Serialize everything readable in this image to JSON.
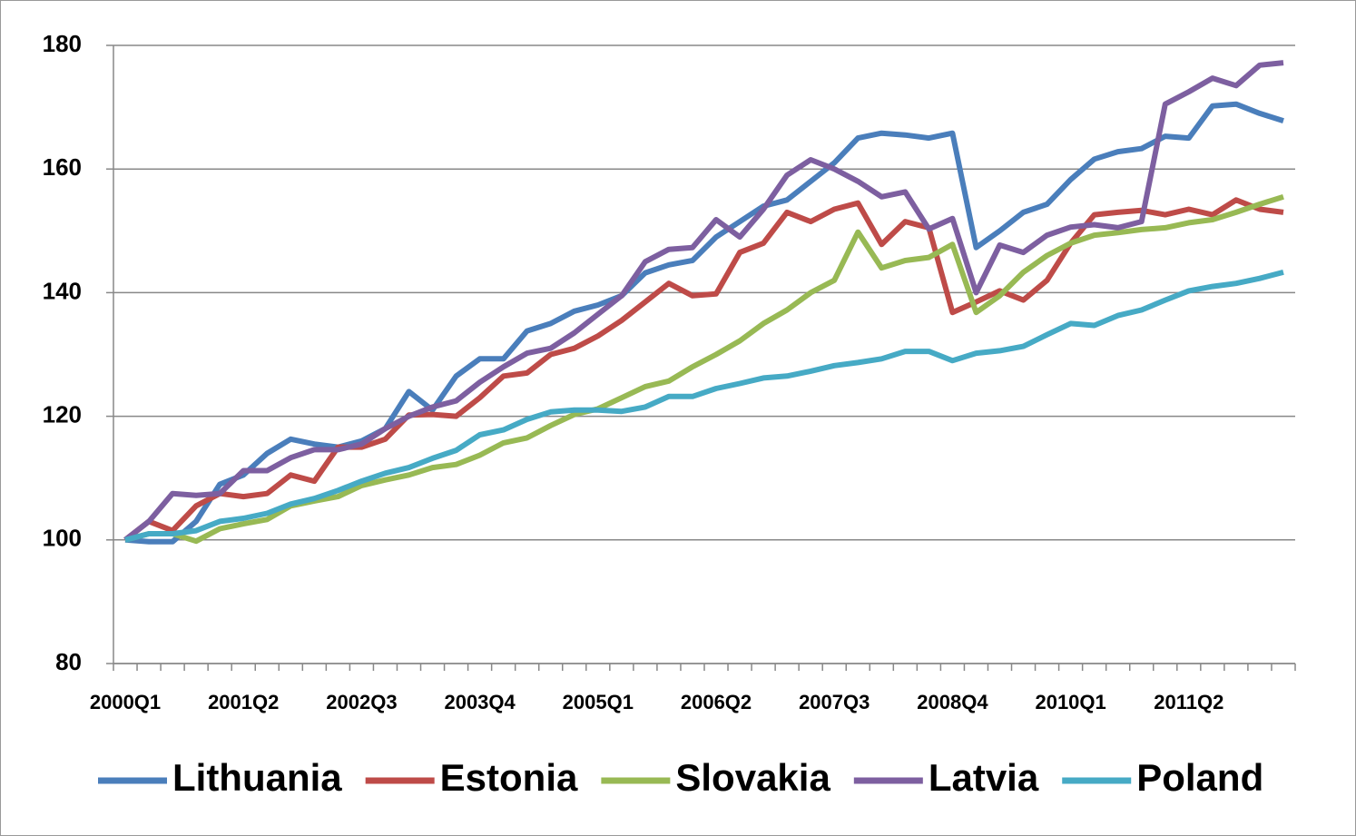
{
  "chart_data": {
    "type": "line",
    "categories": [
      "2000Q1",
      null,
      null,
      null,
      null,
      "2001Q2",
      null,
      null,
      null,
      null,
      "2002Q3",
      null,
      null,
      null,
      null,
      "2003Q4",
      null,
      null,
      null,
      null,
      "2005Q1",
      null,
      null,
      null,
      null,
      "2006Q2",
      null,
      null,
      null,
      null,
      "2007Q3",
      null,
      null,
      null,
      null,
      "2008Q4",
      null,
      null,
      null,
      null,
      "2010Q1",
      null,
      null,
      null,
      null,
      "2011Q2",
      null,
      null,
      null,
      null
    ],
    "series": [
      {
        "name": "Lithuania",
        "color": "#4a7ebb",
        "values": [
          100,
          99.7,
          99.7,
          103,
          109,
          110.5,
          114,
          116.3,
          115.5,
          115,
          116,
          118,
          124,
          121,
          126.5,
          129.3,
          129.3,
          133.8,
          135,
          137,
          138,
          139.5,
          143.2,
          144.5,
          145.2,
          149,
          151.5,
          154,
          155,
          158,
          161,
          165,
          165.8,
          165.5,
          165,
          165.8,
          147.3,
          150,
          153,
          154.3,
          158.3,
          161.6,
          162.8,
          163.3,
          165.3,
          165,
          170.2,
          170.5,
          169,
          167.8
        ]
      },
      {
        "name": "Estonia",
        "color": "#be4b48",
        "values": [
          100,
          103,
          101.5,
          105.5,
          107.5,
          107,
          107.5,
          110.5,
          109.5,
          115,
          115,
          116.3,
          120.2,
          120.3,
          120,
          123,
          126.5,
          127,
          130,
          131,
          133,
          135.5,
          138.5,
          141.5,
          139.5,
          139.8,
          146.5,
          148,
          153,
          151.5,
          153.5,
          154.5,
          147.8,
          151.5,
          150.5,
          136.8,
          138.5,
          140.3,
          138.8,
          142,
          148,
          152.6,
          153,
          153.3,
          152.6,
          153.5,
          152.6,
          155,
          153.5,
          153
        ]
      },
      {
        "name": "Slovakia",
        "color": "#98b954",
        "values": [
          100,
          101,
          101,
          99.8,
          101.8,
          102.6,
          103.3,
          105.5,
          106.3,
          107,
          108.8,
          109.7,
          110.5,
          111.7,
          112.2,
          113.7,
          115.7,
          116.5,
          118.5,
          120.3,
          121.2,
          123,
          124.8,
          125.7,
          128,
          130,
          132.2,
          135,
          137.2,
          140,
          142,
          149.8,
          144,
          145.2,
          145.7,
          147.8,
          136.8,
          139.5,
          143.3,
          146,
          148,
          149.3,
          149.7,
          150.2,
          150.5,
          151.3,
          151.8,
          153,
          154.3,
          155.5
        ]
      },
      {
        "name": "Latvia",
        "color": "#7d5fa0",
        "values": [
          100,
          103,
          107.5,
          107.2,
          107.5,
          111.2,
          111.2,
          113.3,
          114.6,
          114.6,
          115.5,
          118,
          120,
          121.5,
          122.5,
          125.5,
          128,
          130.2,
          131,
          133.5,
          136.5,
          139.5,
          145,
          147,
          147.3,
          151.8,
          149,
          153.5,
          159,
          161.5,
          160,
          158,
          155.5,
          156.3,
          150.3,
          152,
          140,
          147.7,
          146.5,
          149.3,
          150.6,
          151,
          150.5,
          151.5,
          170.5,
          172.5,
          174.7,
          173.5,
          176.8,
          177.2
        ]
      },
      {
        "name": "Poland",
        "color": "#46aac5",
        "values": [
          100,
          101,
          101,
          101.5,
          103,
          103.5,
          104.3,
          105.8,
          106.7,
          108,
          109.5,
          110.8,
          111.7,
          113.2,
          114.5,
          117,
          117.8,
          119.5,
          120.7,
          121,
          121,
          120.8,
          121.5,
          123.2,
          123.2,
          124.5,
          125.3,
          126.2,
          126.5,
          127.3,
          128.2,
          128.7,
          129.3,
          130.5,
          130.5,
          129,
          130.2,
          130.6,
          131.3,
          133.2,
          135,
          134.7,
          136.3,
          137.2,
          138.8,
          140.3,
          141,
          141.5,
          142.3,
          143.3
        ]
      }
    ],
    "ylim": [
      80,
      180
    ],
    "yticks": [
      80,
      100,
      120,
      140,
      160,
      180
    ],
    "grid": true,
    "legend": "bottom"
  }
}
